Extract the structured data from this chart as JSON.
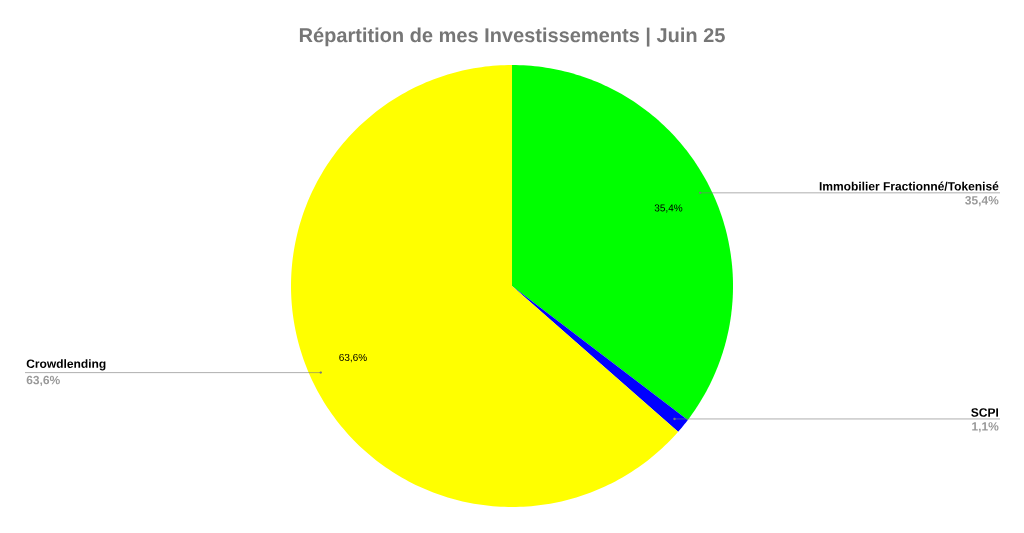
{
  "chart_data": {
    "type": "pie",
    "title": "Répartition de mes Investissements | Juin 25",
    "categories": [
      "Immobilier Fractionné/Tokenisé",
      "SCPI",
      "Crowdlending"
    ],
    "values": [
      35.4,
      1.1,
      63.6
    ],
    "colors": [
      "#00ff00",
      "#0000ff",
      "#ffff00"
    ],
    "value_labels": [
      "35,4%",
      "1,1%",
      "63,6%"
    ]
  }
}
